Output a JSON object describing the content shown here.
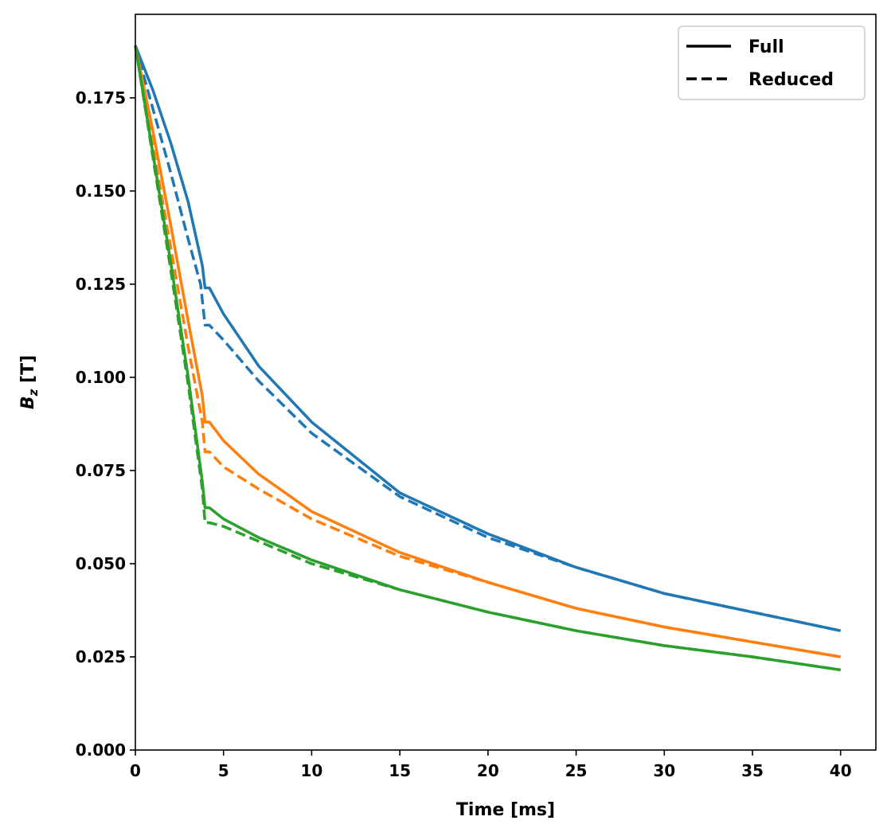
{
  "chart_data": {
    "type": "line",
    "title": "",
    "xlabel": "Time [ms]",
    "ylabel_main": "B",
    "ylabel_sub": "z",
    "ylabel_unit": " [T]",
    "xlim": [
      0,
      42
    ],
    "ylim": [
      0,
      0.1974
    ],
    "xticks": [
      0,
      5,
      10,
      15,
      20,
      25,
      30,
      35,
      40
    ],
    "yticks": [
      0,
      0.025,
      0.05,
      0.075,
      0.1,
      0.125,
      0.15,
      0.175
    ],
    "ytick_labels": [
      "0.000",
      "0.025",
      "0.050",
      "0.075",
      "0.100",
      "0.125",
      "0.150",
      "0.175"
    ],
    "legend": {
      "placement": "top-right",
      "entries": [
        {
          "label": "Full",
          "style": "solid"
        },
        {
          "label": "Reduced",
          "style": "dashed"
        }
      ]
    },
    "series": [
      {
        "name": "blue-full",
        "color": "#1f77b4",
        "style": "solid",
        "x": [
          0,
          1,
          2,
          3,
          3.8,
          3.95,
          4.2,
          5,
          7,
          10,
          15,
          20,
          25,
          30,
          35,
          40
        ],
        "y": [
          0.189,
          0.177,
          0.163,
          0.147,
          0.13,
          0.124,
          0.124,
          0.117,
          0.103,
          0.088,
          0.069,
          0.058,
          0.049,
          0.042,
          0.037,
          0.032
        ]
      },
      {
        "name": "blue-reduced",
        "color": "#1f77b4",
        "style": "dashed",
        "x": [
          0,
          1,
          2,
          3,
          3.7,
          3.95,
          4.2,
          5,
          7,
          10,
          15,
          20,
          25,
          30,
          35,
          40
        ],
        "y": [
          0.189,
          0.172,
          0.155,
          0.137,
          0.125,
          0.114,
          0.114,
          0.11,
          0.099,
          0.085,
          0.068,
          0.057,
          0.049,
          0.042,
          0.037,
          0.032
        ]
      },
      {
        "name": "orange-full",
        "color": "#ff7f0e",
        "style": "solid",
        "x": [
          0,
          1,
          2,
          3,
          3.8,
          3.95,
          4.2,
          5,
          7,
          10,
          15,
          20,
          25,
          30,
          35,
          40
        ],
        "y": [
          0.189,
          0.166,
          0.141,
          0.115,
          0.095,
          0.088,
          0.088,
          0.083,
          0.074,
          0.064,
          0.053,
          0.045,
          0.038,
          0.033,
          0.029,
          0.025
        ]
      },
      {
        "name": "orange-reduced",
        "color": "#ff7f0e",
        "style": "dashed",
        "x": [
          0,
          1,
          2,
          3,
          3.8,
          3.95,
          4.2,
          5,
          7,
          10,
          15,
          20,
          25,
          30,
          35,
          40
        ],
        "y": [
          0.189,
          0.162,
          0.135,
          0.108,
          0.088,
          0.08,
          0.08,
          0.076,
          0.07,
          0.062,
          0.052,
          0.045,
          0.038,
          0.033,
          0.029,
          0.025
        ]
      },
      {
        "name": "green-full",
        "color": "#2ca02c",
        "style": "solid",
        "x": [
          0,
          1,
          2,
          3,
          3.8,
          3.95,
          4.2,
          5,
          7,
          10,
          15,
          20,
          25,
          30,
          35,
          40
        ],
        "y": [
          0.189,
          0.16,
          0.131,
          0.1,
          0.072,
          0.065,
          0.065,
          0.062,
          0.057,
          0.051,
          0.043,
          0.037,
          0.032,
          0.028,
          0.025,
          0.0215
        ]
      },
      {
        "name": "green-reduced",
        "color": "#2ca02c",
        "style": "dashed",
        "x": [
          0,
          1,
          2,
          3,
          3.8,
          3.95,
          4.2,
          5,
          7,
          10,
          15,
          20,
          25,
          30,
          35,
          40
        ],
        "y": [
          0.189,
          0.159,
          0.129,
          0.098,
          0.07,
          0.061,
          0.061,
          0.06,
          0.056,
          0.05,
          0.043,
          0.037,
          0.032,
          0.028,
          0.025,
          0.0215
        ]
      }
    ]
  }
}
